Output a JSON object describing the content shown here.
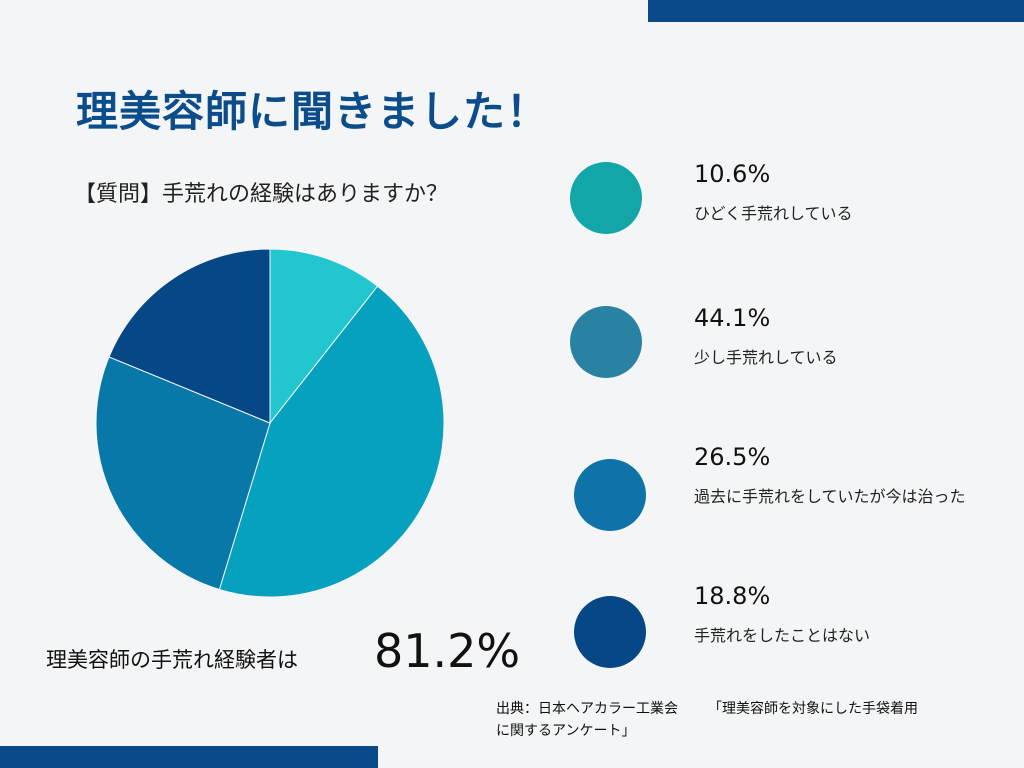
{
  "title": "理美容師に聞きました！",
  "question": "【質問】手荒れの経験はありますか？",
  "chart_data": {
    "type": "pie",
    "slices": [
      {
        "label": "ひどく手荒れしている",
        "value": 10.6,
        "value_label": "10.6%",
        "color": "#22c6cf",
        "legend_color": "#13a6a8"
      },
      {
        "label": "少し手荒れしている",
        "value": 44.1,
        "value_label": "44.1%",
        "color": "#06a1bf",
        "legend_color": "#2a82a3"
      },
      {
        "label": "過去に手荒れをしていたが今は治った",
        "value": 26.5,
        "value_label": "26.5%",
        "color": "#0878a9",
        "legend_color": "#0f72a9"
      },
      {
        "label": "手荒れをしたことはない",
        "value": 18.8,
        "value_label": "18.8%",
        "color": "#064886",
        "legend_color": "#064886"
      }
    ],
    "start_angle_deg": 0,
    "direction": "clockwise"
  },
  "summary": {
    "label": "理美容師の手荒れ経験者は",
    "value": "81.2%"
  },
  "source": {
    "line1": "出典：日本ヘアカラー工業会",
    "line2": "「理美容師を対象にした手袋着用",
    "line3": "に関するアンケート」"
  }
}
